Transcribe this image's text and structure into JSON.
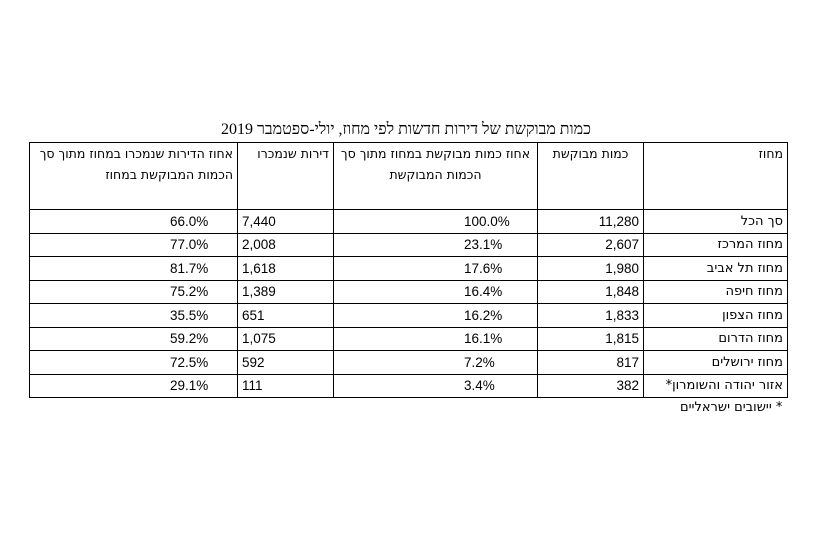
{
  "title": "כמות מבוקשת של דירות חדשות לפי מחוז, יולי-ספטמבר 2019",
  "headers": {
    "district": "מחוז",
    "qty_demanded": "כמות מבוקשת",
    "pct_qty": "אחוז כמות מבוקשת במחוז מתוך סך הכמות המבוקשת",
    "sold": "דירות שנמכרו",
    "pct_sold": "אחוז הדירות שנמכרו במחוז מתוך סך הכמות המבוקשת במחוז"
  },
  "rows": [
    {
      "district": "סך הכל",
      "qty": "11,280",
      "pct_qty": "100.0%",
      "sold": "7,440",
      "pct_sold": "66.0%"
    },
    {
      "district": "מחוז המרכז",
      "qty": "2,607",
      "pct_qty": "23.1%",
      "sold": "2,008",
      "pct_sold": "77.0%"
    },
    {
      "district": "מחוז תל אביב",
      "qty": "1,980",
      "pct_qty": "17.6%",
      "sold": "1,618",
      "pct_sold": "81.7%"
    },
    {
      "district": "מחוז חיפה",
      "qty": "1,848",
      "pct_qty": "16.4%",
      "sold": "1,389",
      "pct_sold": "75.2%"
    },
    {
      "district": "מחוז הצפון",
      "qty": "1,833",
      "pct_qty": "16.2%",
      "sold": "651",
      "pct_sold": "35.5%"
    },
    {
      "district": "מחוז הדרום",
      "qty": "1,815",
      "pct_qty": "16.1%",
      "sold": "1,075",
      "pct_sold": "59.2%"
    },
    {
      "district": "מחוז ירושלים",
      "qty": "817",
      "pct_qty": "7.2%",
      "sold": "592",
      "pct_sold": "72.5%"
    },
    {
      "district": "אזור יהודה והשומרון*",
      "qty": "382",
      "pct_qty": "3.4%",
      "sold": "111",
      "pct_sold": "29.1%"
    }
  ],
  "footnote": "* יישובים ישראליים"
}
